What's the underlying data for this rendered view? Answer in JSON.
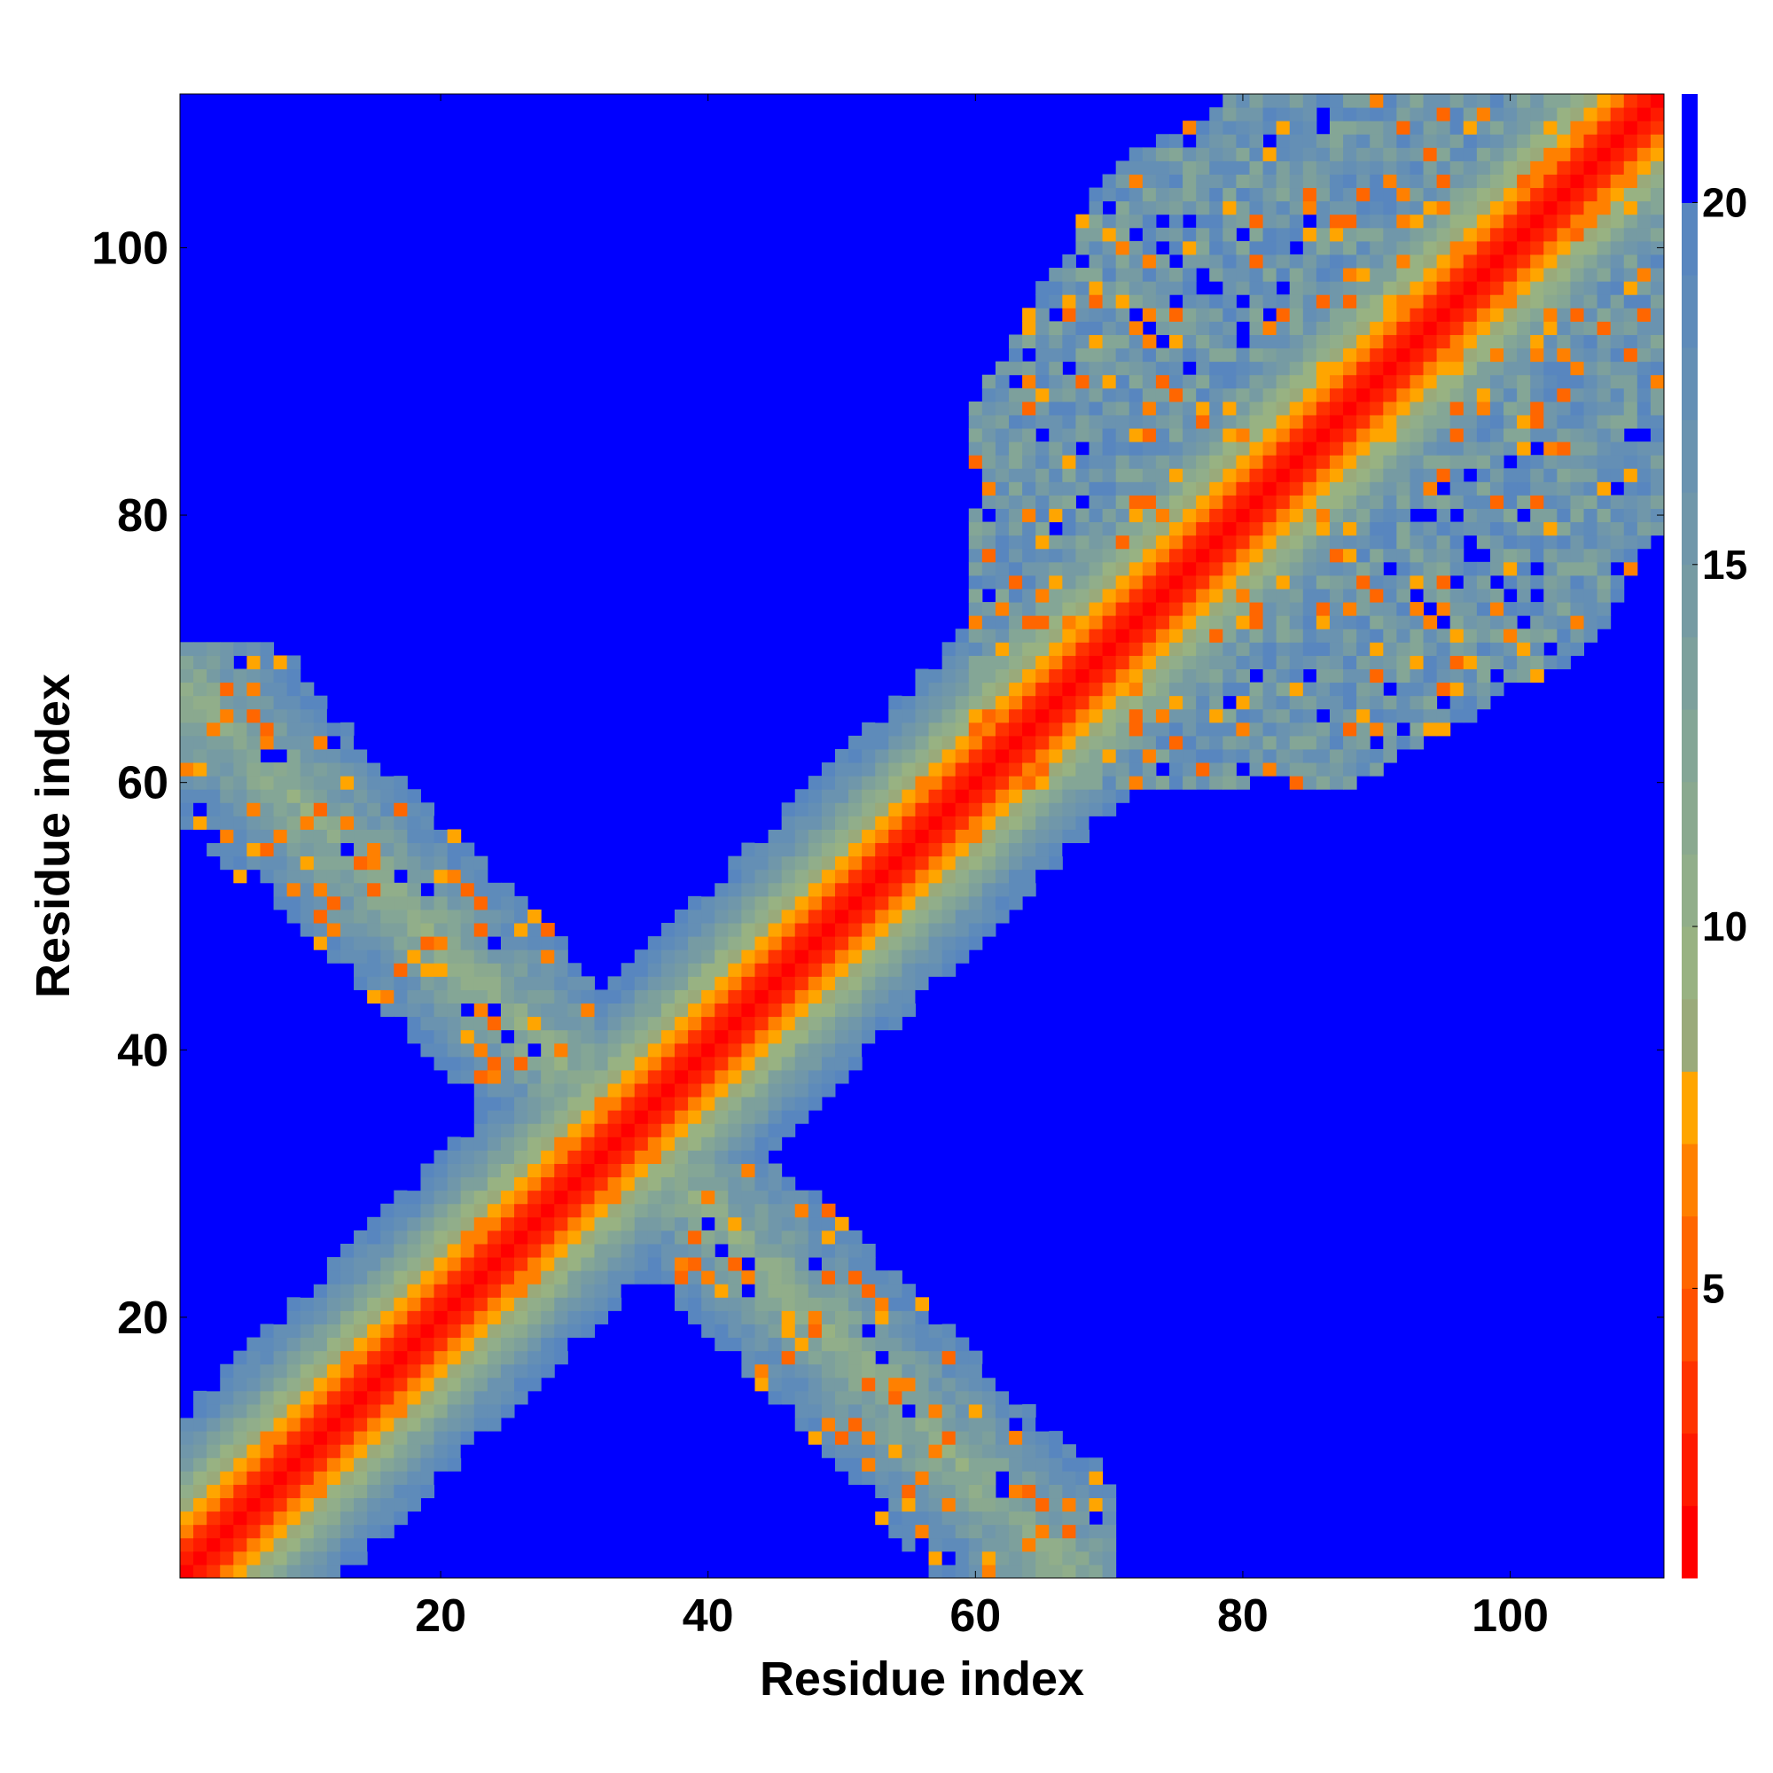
{
  "chart_data": {
    "type": "heatmap",
    "title": "",
    "xlabel": "Residue index",
    "ylabel": "Residue index",
    "n_residues": 111,
    "xlim": [
      1,
      111
    ],
    "ylim": [
      1,
      111
    ],
    "x_ticks": [
      20,
      40,
      60,
      80,
      100
    ],
    "y_ticks": [
      20,
      40,
      60,
      80,
      100
    ],
    "colorbar": {
      "range": [
        1,
        21.5
      ],
      "ticks": [
        5,
        10,
        15,
        20
      ],
      "levels": [
        {
          "max": 2,
          "color": "#ff0000"
        },
        {
          "max": 3,
          "color": "#ff1a00"
        },
        {
          "max": 4,
          "color": "#ff3300"
        },
        {
          "max": 5,
          "color": "#ff5000"
        },
        {
          "max": 6,
          "color": "#ff6600"
        },
        {
          "max": 7,
          "color": "#ff8000"
        },
        {
          "max": 8,
          "color": "#ffa500"
        },
        {
          "max": 9,
          "color": "#9aaa7a"
        },
        {
          "max": 10,
          "color": "#98b282"
        },
        {
          "max": 11,
          "color": "#91ae8a"
        },
        {
          "max": 12,
          "color": "#8aa98f"
        },
        {
          "max": 13,
          "color": "#84a696"
        },
        {
          "max": 14,
          "color": "#7da09c"
        },
        {
          "max": 15,
          "color": "#769ba3"
        },
        {
          "max": 16,
          "color": "#7097aa"
        },
        {
          "max": 17,
          "color": "#6a93b0"
        },
        {
          "max": 18,
          "color": "#648fb5"
        },
        {
          "max": 19,
          "color": "#5e8bba"
        },
        {
          "max": 20,
          "color": "#5886bf"
        },
        {
          "max": 21.5,
          "color": "#0000ff"
        }
      ]
    },
    "regions": [
      {
        "name": "diagonal band",
        "description": "contacts along the main diagonal (|i-j| small)"
      },
      {
        "name": "off-diagonal lobe",
        "residues_i": [
          1,
          30
        ],
        "residues_j": [
          35,
          68
        ]
      },
      {
        "name": "C-terminal domain",
        "residues_i": [
          62,
          111
        ],
        "residues_j": [
          62,
          111
        ]
      }
    ]
  }
}
